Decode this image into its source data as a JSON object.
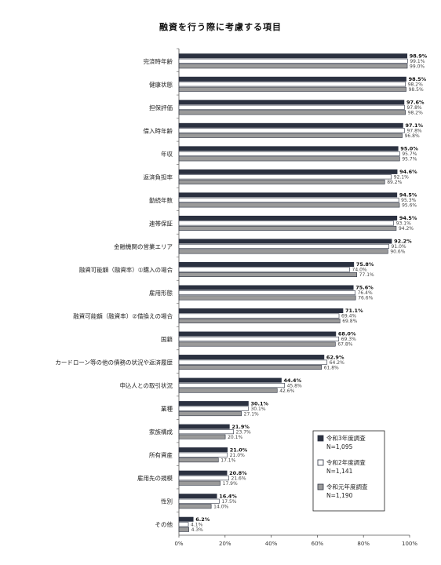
{
  "chart_data": {
    "type": "bar",
    "orientation": "horizontal",
    "title": "融資を行う際に考慮する項目",
    "xlabel": "",
    "ylabel": "",
    "xlim": [
      0,
      100
    ],
    "x_ticks": [
      "0%",
      "20%",
      "40%",
      "60%",
      "80%",
      "100%"
    ],
    "grid": false,
    "legend_position": "bottom-right",
    "categories": [
      "完済時年齢",
      "健康状態",
      "担保評価",
      "借入時年齢",
      "年収",
      "返済負担率",
      "勤続年数",
      "連帯保証",
      "金融機関の営業エリア",
      "融資可能額（融資率）①購入の場合",
      "雇用形態",
      "融資可能額（融資率）②借換えの場合",
      "国籍",
      "カードローン等の他の債務の状況や返済履歴",
      "申込人との取引状況",
      "業種",
      "家族構成",
      "所有資産",
      "雇用先の規模",
      "性別",
      "その他"
    ],
    "series": [
      {
        "name": "令和3年度調査",
        "n_label": "N=1,095",
        "color": "#2b3140",
        "values": [
          98.9,
          98.5,
          97.6,
          97.1,
          95.0,
          94.6,
          94.5,
          94.5,
          92.2,
          75.8,
          75.6,
          71.1,
          68.0,
          62.9,
          44.4,
          30.1,
          21.9,
          21.0,
          20.8,
          16.4,
          6.2
        ]
      },
      {
        "name": "令和2年度調査",
        "n_label": "N=1,141",
        "color": "#ffffff",
        "values": [
          99.1,
          98.2,
          97.8,
          97.8,
          95.7,
          92.1,
          95.3,
          93.1,
          91.0,
          74.0,
          76.4,
          69.4,
          69.3,
          64.2,
          45.8,
          30.1,
          23.7,
          21.0,
          21.6,
          17.5,
          4.1
        ]
      },
      {
        "name": "令和元年度調査",
        "n_label": "N=1,190",
        "color": "#9a9a9a",
        "values": [
          99.0,
          98.5,
          98.2,
          96.8,
          95.7,
          89.2,
          95.6,
          94.2,
          90.6,
          77.1,
          76.6,
          69.8,
          67.8,
          61.8,
          42.6,
          27.1,
          20.1,
          17.1,
          17.9,
          14.0,
          4.3
        ]
      }
    ]
  }
}
